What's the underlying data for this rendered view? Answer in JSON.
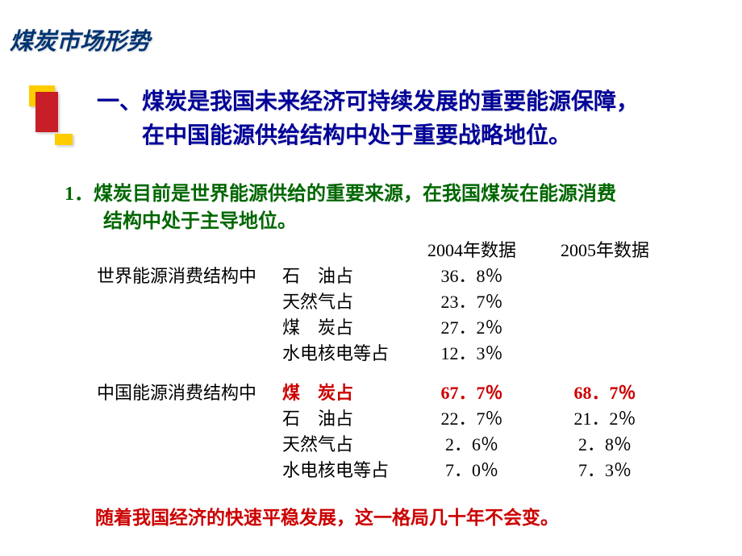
{
  "title": "煤炭市场形势",
  "heading": {
    "line1": "一、煤炭是我国未来经济可持续发展的重要能源保障，",
    "line2": "在中国能源供给结构中处于重要战略地位。"
  },
  "subheading": {
    "line1": "1．煤炭目前是世界能源供给的重要来源，在我国煤炭在能源消费",
    "line2": "结构中处于主导地位。"
  },
  "table": {
    "header_2004": "2004年数据",
    "header_2005": "2005年数据",
    "group1_label": "世界能源消费结构中",
    "group2_label": "中国能源消费结构中",
    "world": {
      "oil_label": "石　油占",
      "oil_2004": "36．8％",
      "gas_label": "天然气占",
      "gas_2004": "23．7％",
      "coal_label": "煤　炭占",
      "coal_2004": "27．2％",
      "hydro_label": "水电核电等占",
      "hydro_2004": "12．3％"
    },
    "china": {
      "coal_label": "煤　炭占",
      "coal_2004": "67．7％",
      "coal_2005": "68．7％",
      "oil_label": "石　油占",
      "oil_2004": "22．7％",
      "oil_2005": "21．2％",
      "gas_label": "天然气占",
      "gas_2004": "2．6％",
      "gas_2005": "2．8％",
      "hydro_label": "水电核电等占",
      "hydro_2004": "7．0％",
      "hydro_2005": "7．3％"
    }
  },
  "footer": "随着我国经济的快速平稳发展，这一格局几十年不会变。",
  "colors": {
    "title": "#003472",
    "heading": "#000099",
    "subheading": "#006600",
    "body": "#000000",
    "highlight": "#cc0000",
    "deco_yellow": "#ffcc00",
    "deco_red": "#c81e28"
  }
}
